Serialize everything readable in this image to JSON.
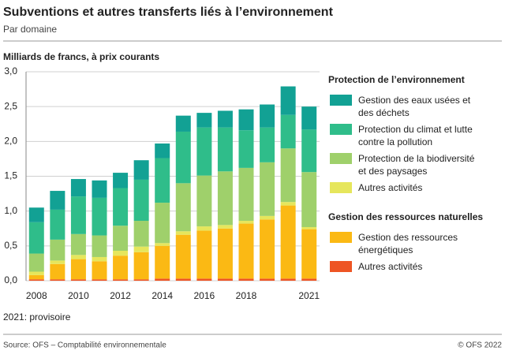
{
  "chart_data": {
    "type": "stacked-bar",
    "title": "Subventions et autres transferts liés à l’environnement",
    "subtitle": "Par domaine",
    "y_label": "Milliards de francs, à prix courants",
    "note": "2021: provisoire",
    "source": "Source: OFS – Comptabilité environnementale",
    "copyright": "© OFS 2022",
    "categories": [
      "2008",
      null,
      "2010",
      null,
      "2012",
      null,
      "2014",
      null,
      "2016",
      null,
      "2018",
      null,
      null,
      "2021"
    ],
    "ylim": [
      0,
      3
    ],
    "yticks": [
      {
        "value": 0,
        "label": "0,0"
      },
      {
        "value": 0.5,
        "label": "0,5"
      },
      {
        "value": 1,
        "label": "1,0"
      },
      {
        "value": 1.5,
        "label": "1,5"
      },
      {
        "value": 2,
        "label": "2,0"
      },
      {
        "value": 2.5,
        "label": "2,5"
      },
      {
        "value": 3,
        "label": "3,0"
      }
    ],
    "grid": true,
    "legend_groups": [
      "Protection de l’environnement",
      "Gestion des ressources naturelles"
    ],
    "series": [
      {
        "name": "Gestion des eaux usées et des déchets",
        "group": 0,
        "color": "#12a194",
        "values": [
          0.21,
          0.27,
          0.25,
          0.25,
          0.22,
          0.28,
          0.21,
          0.23,
          0.21,
          0.24,
          0.3,
          0.33,
          0.41,
          0.33
        ]
      },
      {
        "name": "Protection du climat et lutte contre la pollution",
        "group": 0,
        "color": "#2fbd8a",
        "values": [
          0.45,
          0.43,
          0.54,
          0.54,
          0.54,
          0.59,
          0.64,
          0.74,
          0.69,
          0.63,
          0.54,
          0.5,
          0.48,
          0.61
        ]
      },
      {
        "name": "Protection de la biodiversité et des paysages",
        "group": 0,
        "color": "#9fd06b",
        "values": [
          0.26,
          0.3,
          0.3,
          0.31,
          0.36,
          0.37,
          0.58,
          0.69,
          0.73,
          0.77,
          0.76,
          0.77,
          0.77,
          0.79
        ]
      },
      {
        "name": "Autres activités",
        "group": 0,
        "color": "#e6e65c",
        "values": [
          0.05,
          0.05,
          0.06,
          0.06,
          0.07,
          0.08,
          0.04,
          0.05,
          0.06,
          0.05,
          0.04,
          0.05,
          0.05,
          0.03
        ]
      },
      {
        "name": "Gestion des ressources énergétiques",
        "group": 1,
        "color": "#fbb914",
        "values": [
          0.06,
          0.22,
          0.29,
          0.26,
          0.34,
          0.39,
          0.47,
          0.63,
          0.69,
          0.72,
          0.79,
          0.85,
          1.05,
          0.71
        ]
      },
      {
        "name": "Autres activités",
        "group": 1,
        "color": "#ee5524",
        "values": [
          0.02,
          0.02,
          0.02,
          0.02,
          0.02,
          0.02,
          0.03,
          0.03,
          0.03,
          0.03,
          0.03,
          0.03,
          0.03,
          0.03
        ]
      }
    ]
  }
}
